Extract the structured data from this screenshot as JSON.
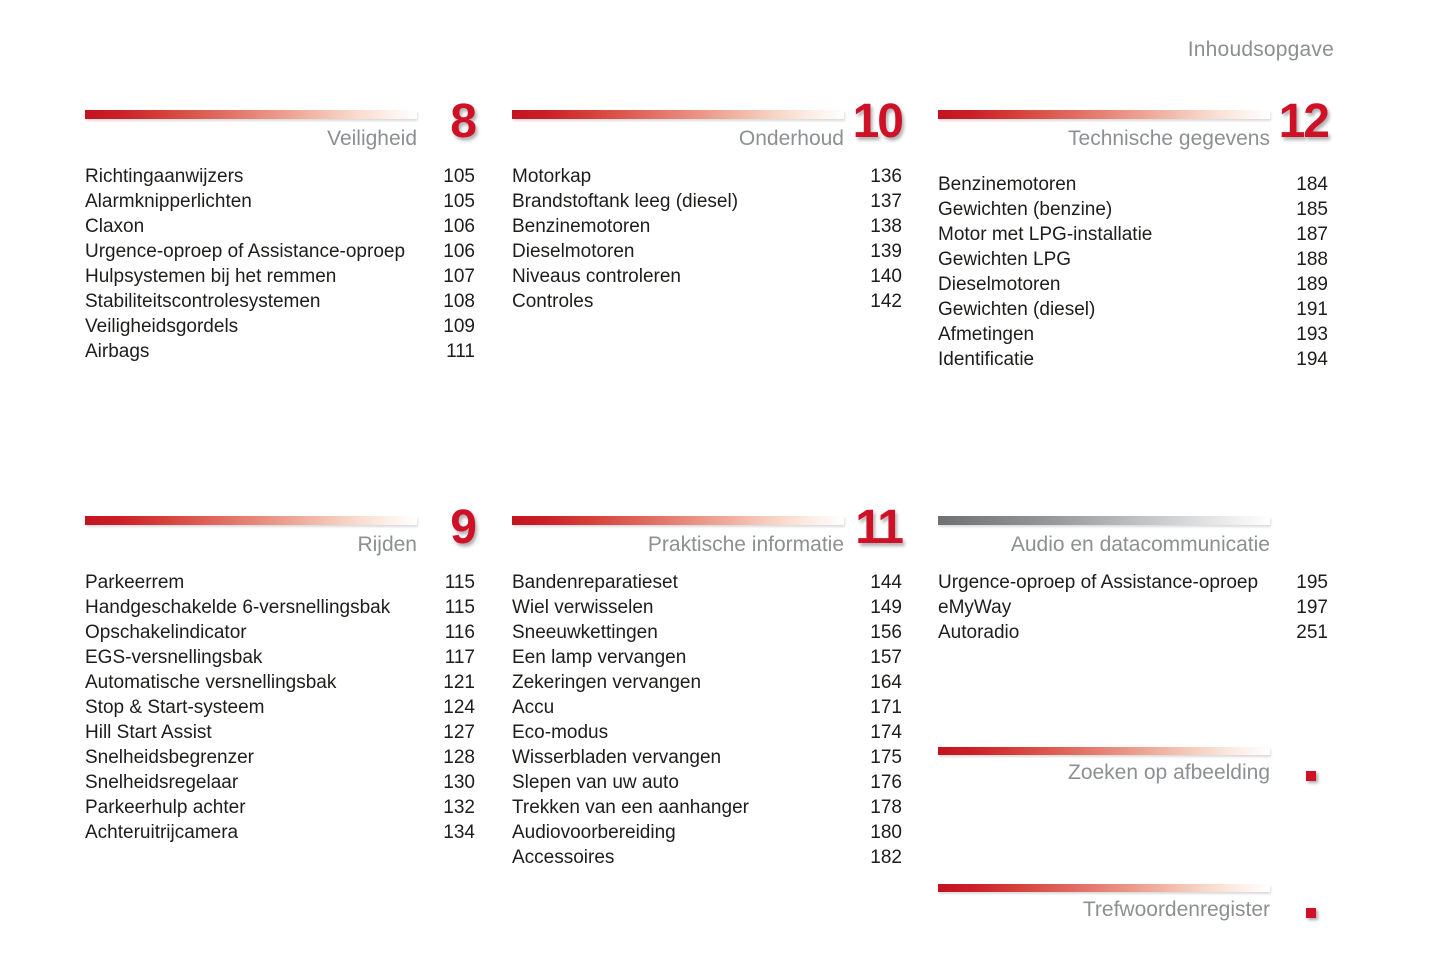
{
  "header": "Inhoudsopgave",
  "colors": {
    "accent_red": "#ce1126",
    "bar_gray": "#6e7072",
    "title_gray": "#8d9093",
    "text_dark": "#1d1d1b"
  },
  "sections": [
    {
      "title": "Veiligheid",
      "chapter": "8",
      "entries": [
        {
          "label": "Richtingaanwijzers",
          "page": "105"
        },
        {
          "label": "Alarmknipperlichten",
          "page": "105"
        },
        {
          "label": "Claxon",
          "page": "106"
        },
        {
          "label": "Urgence-oproep of Assistance-oproep",
          "page": "106"
        },
        {
          "label": "Hulpsystemen bij het remmen",
          "page": "107"
        },
        {
          "label": "Stabiliteitscontrolesystemen",
          "page": "108"
        },
        {
          "label": "Veiligheidsgordels",
          "page": "109"
        },
        {
          "label": "Airbags",
          "page": "111"
        }
      ]
    },
    {
      "title": "Onderhoud",
      "chapter": "10",
      "entries": [
        {
          "label": "Motorkap",
          "page": "136"
        },
        {
          "label": "Brandstoftank leeg (diesel)",
          "page": "137"
        },
        {
          "label": "Benzinemotoren",
          "page": "138"
        },
        {
          "label": "Dieselmotoren",
          "page": "139"
        },
        {
          "label": "Niveaus controleren",
          "page": "140"
        },
        {
          "label": "Controles",
          "page": "142"
        }
      ]
    },
    {
      "title": "Technische gegevens",
      "chapter": "12",
      "entries": [
        {
          "label": "Benzinemotoren",
          "page": "184"
        },
        {
          "label": "Gewichten (benzine)",
          "page": "185"
        },
        {
          "label": "Motor met LPG-installatie",
          "page": "187"
        },
        {
          "label": "Gewichten LPG",
          "page": "188"
        },
        {
          "label": "Dieselmotoren",
          "page": "189"
        },
        {
          "label": "Gewichten (diesel)",
          "page": "191"
        },
        {
          "label": "Afmetingen",
          "page": "193"
        },
        {
          "label": "Identificatie",
          "page": "194"
        }
      ]
    },
    {
      "title": "Rijden",
      "chapter": "9",
      "entries": [
        {
          "label": "Parkeerrem",
          "page": "115"
        },
        {
          "label": "Handgeschakelde 6-versnellingsbak",
          "page": "115"
        },
        {
          "label": "Opschakelindicator",
          "page": "116"
        },
        {
          "label": "EGS-versnellingsbak",
          "page": "117"
        },
        {
          "label": "Automatische versnellingsbak",
          "page": "121"
        },
        {
          "label": "Stop & Start-systeem",
          "page": "124"
        },
        {
          "label": "Hill Start Assist",
          "page": "127"
        },
        {
          "label": "Snelheidsbegrenzer",
          "page": "128"
        },
        {
          "label": "Snelheidsregelaar",
          "page": "130"
        },
        {
          "label": "Parkeerhulp achter",
          "page": "132"
        },
        {
          "label": "Achteruitrijcamera",
          "page": "134"
        }
      ]
    },
    {
      "title": "Praktische informatie",
      "chapter": "11",
      "entries": [
        {
          "label": "Bandenreparatieset",
          "page": "144"
        },
        {
          "label": "Wiel verwisselen",
          "page": "149"
        },
        {
          "label": "Sneeuwkettingen",
          "page": "156"
        },
        {
          "label": "Een lamp vervangen",
          "page": "157"
        },
        {
          "label": "Zekeringen vervangen",
          "page": "164"
        },
        {
          "label": "Accu",
          "page": "171"
        },
        {
          "label": "Eco-modus",
          "page": "174"
        },
        {
          "label": "Wisserbladen vervangen",
          "page": "175"
        },
        {
          "label": "Slepen van uw auto",
          "page": "176"
        },
        {
          "label": "Trekken van een aanhanger",
          "page": "178"
        },
        {
          "label": "Audiovoorbereiding",
          "page": "180"
        },
        {
          "label": "Accessoires",
          "page": "182"
        }
      ]
    },
    {
      "title": "Audio en datacommunicatie",
      "chapter": "",
      "entries": [
        {
          "label": "Urgence-oproep of Assistance-oproep",
          "page": "195"
        },
        {
          "label": "eMyWay",
          "page": "197"
        },
        {
          "label": "Autoradio",
          "page": "251"
        }
      ]
    }
  ],
  "links": [
    {
      "title": "Zoeken op afbeelding"
    },
    {
      "title": "Trefwoordenregister"
    }
  ]
}
